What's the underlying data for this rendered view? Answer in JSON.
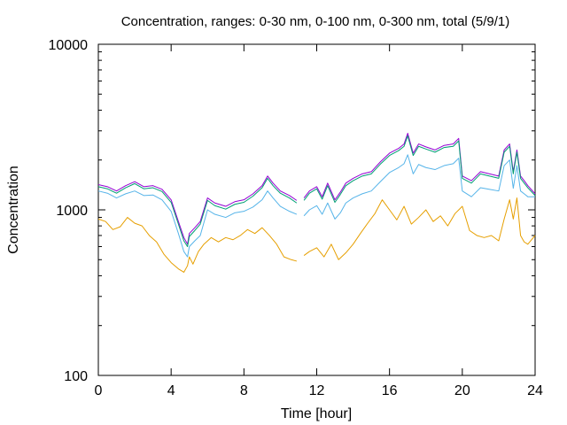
{
  "chart_data": {
    "type": "line",
    "title": "Concentration, ranges: 0-30 nm, 0-100 nm, 0-300 nm, total (5/9/1)",
    "xlabel": "Time [hour]",
    "ylabel": "Concentration",
    "xlim": [
      0,
      24
    ],
    "ylim": [
      100,
      10000
    ],
    "yscale": "log",
    "x_ticks": [
      "0",
      "4",
      "8",
      "12",
      "16",
      "20",
      "24"
    ],
    "y_ticks": [
      "100",
      "1000",
      "10000"
    ],
    "grid": false,
    "legend": false,
    "series": [
      {
        "color": "#9400d3",
        "x": [
          0,
          0.5,
          1,
          1.5,
          2,
          2.5,
          3,
          3.5,
          4,
          4.4,
          4.7,
          4.9,
          5,
          5.3,
          5.6,
          6,
          6.4,
          7,
          7.5,
          8,
          8.5,
          9,
          9.3,
          9.6,
          10,
          10.5,
          10.9,
          11,
          11.3,
          11.6,
          12,
          12.3,
          12.6,
          13,
          13.3,
          13.6,
          14,
          14.5,
          15,
          15.5,
          16,
          16.5,
          16.8,
          17,
          17.3,
          17.6,
          18,
          18.5,
          19,
          19.5,
          19.8,
          20,
          20.5,
          21,
          21.5,
          22,
          22.3,
          22.6,
          22.8,
          23,
          23.2,
          23.4,
          23.6,
          24
        ],
        "y": [
          1420,
          1380,
          1300,
          1400,
          1480,
          1380,
          1400,
          1330,
          1150,
          850,
          680,
          620,
          720,
          780,
          850,
          1180,
          1100,
          1050,
          1120,
          1150,
          1250,
          1400,
          1600,
          1450,
          1300,
          1220,
          1140,
          null,
          1180,
          1300,
          1380,
          1200,
          1450,
          1150,
          1280,
          1450,
          1550,
          1650,
          1700,
          1950,
          2200,
          2350,
          2500,
          2900,
          2200,
          2500,
          2400,
          2300,
          2450,
          2500,
          2700,
          1600,
          1500,
          1700,
          1650,
          1600,
          2300,
          2500,
          1700,
          2300,
          1600,
          1500,
          1400,
          1250
        ]
      },
      {
        "color": "#009e73",
        "x": [
          0,
          0.5,
          1,
          1.5,
          2,
          2.5,
          3,
          3.5,
          4,
          4.4,
          4.7,
          4.9,
          5,
          5.3,
          5.6,
          6,
          6.4,
          7,
          7.5,
          8,
          8.5,
          9,
          9.3,
          9.6,
          10,
          10.5,
          10.9,
          11,
          11.3,
          11.6,
          12,
          12.3,
          12.6,
          13,
          13.3,
          13.6,
          14,
          14.5,
          15,
          15.5,
          16,
          16.5,
          16.8,
          17,
          17.3,
          17.6,
          18,
          18.5,
          19,
          19.5,
          19.8,
          20,
          20.5,
          21,
          21.5,
          22,
          22.3,
          22.6,
          22.8,
          23,
          23.2,
          23.4,
          23.6,
          24
        ],
        "y": [
          1380,
          1340,
          1260,
          1360,
          1440,
          1340,
          1360,
          1290,
          1110,
          820,
          650,
          600,
          690,
          750,
          820,
          1140,
          1060,
          1010,
          1080,
          1110,
          1210,
          1360,
          1550,
          1400,
          1260,
          1180,
          1100,
          null,
          1140,
          1260,
          1340,
          1160,
          1400,
          1110,
          1240,
          1400,
          1500,
          1600,
          1650,
          1890,
          2130,
          2280,
          2420,
          2800,
          2130,
          2420,
          2330,
          2230,
          2380,
          2420,
          2610,
          1550,
          1450,
          1650,
          1600,
          1550,
          2230,
          2420,
          1650,
          2230,
          1550,
          1450,
          1360,
          1220
        ]
      },
      {
        "color": "#56b4e9",
        "x": [
          0,
          0.5,
          1,
          1.5,
          2,
          2.5,
          3,
          3.5,
          4,
          4.4,
          4.7,
          4.9,
          5,
          5.3,
          5.6,
          6,
          6.4,
          7,
          7.5,
          8,
          8.5,
          9,
          9.3,
          9.6,
          10,
          10.5,
          10.9,
          11,
          11.3,
          11.6,
          12,
          12.3,
          12.6,
          13,
          13.3,
          13.6,
          14,
          14.5,
          15,
          15.5,
          16,
          16.5,
          16.8,
          17,
          17.3,
          17.6,
          18,
          18.5,
          19,
          19.5,
          19.8,
          20,
          20.5,
          21,
          21.5,
          22,
          22.3,
          22.6,
          22.8,
          23,
          23.2,
          23.4,
          23.6,
          24
        ],
        "y": [
          1300,
          1260,
          1180,
          1250,
          1300,
          1220,
          1230,
          1150,
          980,
          720,
          560,
          520,
          600,
          650,
          700,
          1000,
          940,
          900,
          960,
          980,
          1040,
          1150,
          1300,
          1180,
          1050,
          980,
          940,
          null,
          920,
          1000,
          1060,
          940,
          1100,
          880,
          960,
          1100,
          1180,
          1250,
          1300,
          1480,
          1680,
          1800,
          1900,
          2150,
          1650,
          1880,
          1800,
          1750,
          1850,
          1900,
          2050,
          1300,
          1200,
          1360,
          1330,
          1300,
          1850,
          2000,
          1350,
          1850,
          1300,
          1250,
          1200,
          1200
        ]
      },
      {
        "color": "#e69f00",
        "x": [
          0,
          0.4,
          0.8,
          1.2,
          1.6,
          2,
          2.4,
          2.8,
          3.2,
          3.6,
          4,
          4.4,
          4.7,
          4.9,
          5,
          5.2,
          5.5,
          5.8,
          6.2,
          6.6,
          7,
          7.4,
          7.8,
          8.2,
          8.6,
          9,
          9.4,
          9.8,
          10.2,
          10.6,
          10.9,
          11,
          11.3,
          11.6,
          12,
          12.4,
          12.8,
          13.2,
          13.6,
          14,
          14.4,
          14.8,
          15.2,
          15.6,
          16,
          16.4,
          16.8,
          17.2,
          17.6,
          18,
          18.4,
          18.8,
          19.2,
          19.6,
          20,
          20.4,
          20.8,
          21.2,
          21.6,
          22,
          22.3,
          22.6,
          22.8,
          23,
          23.2,
          23.4,
          23.6,
          24
        ],
        "y": [
          880,
          850,
          760,
          790,
          900,
          830,
          800,
          700,
          640,
          540,
          480,
          440,
          420,
          460,
          520,
          470,
          560,
          620,
          680,
          640,
          680,
          660,
          700,
          760,
          720,
          780,
          700,
          620,
          520,
          500,
          490,
          null,
          530,
          560,
          590,
          520,
          620,
          500,
          550,
          620,
          720,
          830,
          950,
          1150,
          1000,
          870,
          1050,
          820,
          900,
          1000,
          850,
          920,
          800,
          950,
          1050,
          750,
          700,
          680,
          700,
          650,
          880,
          1150,
          880,
          1180,
          700,
          640,
          620,
          700
        ]
      }
    ]
  }
}
